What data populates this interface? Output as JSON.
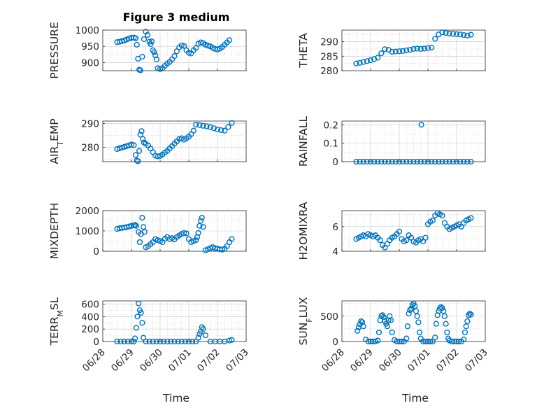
{
  "figure": {
    "title": "Figure 3 medium",
    "x_axis_label": "Time"
  },
  "colors": {
    "marker": "#0072BD",
    "axis": "#262626",
    "grid": "#c8c8c8"
  },
  "chart_data": [
    {
      "type": "scatter",
      "ylabel": "PRESSURE",
      "ylim": [
        875,
        1000
      ],
      "yticks": [
        "900",
        "950",
        "1000"
      ],
      "xlim": [
        "06/28",
        "07/03"
      ],
      "xticks": [
        "06/28",
        "06/29",
        "06/30",
        "07/01",
        "07/02",
        "07/03"
      ],
      "grid": true,
      "x": [
        "06/28 12:00",
        "06/28 14:00",
        "06/28 16:00",
        "06/28 18:00",
        "06/28 20:00",
        "06/28 22:00",
        "06/29 00:00",
        "06/29 02:00",
        "06/29 03:30",
        "06/29 04:30",
        "06/29 05:30",
        "06/29 06:30",
        "06/29 07:30",
        "06/29 09:00",
        "06/29 10:30",
        "06/29 12:00",
        "06/29 13:30",
        "06/29 15:00",
        "06/29 16:00",
        "06/29 17:00",
        "06/29 18:00",
        "06/29 19:00",
        "06/29 20:00",
        "06/29 21:00",
        "06/29 22:00",
        "06/30 00:00",
        "06/30 02:00",
        "06/30 04:00",
        "06/30 06:00",
        "06/30 08:00",
        "06/30 10:00",
        "06/30 12:00",
        "06/30 14:00",
        "06/30 16:00",
        "06/30 18:00",
        "06/30 20:00",
        "06/30 22:00",
        "07/01 00:00",
        "07/01 02:00",
        "07/01 04:00",
        "07/01 06:00",
        "07/01 08:00",
        "07/01 10:00",
        "07/01 12:00",
        "07/01 14:00",
        "07/01 16:00",
        "07/01 18:00",
        "07/01 20:00",
        "07/01 22:00",
        "07/02 00:00",
        "07/02 02:00",
        "07/02 04:00",
        "07/02 06:00",
        "07/02 08:00",
        "07/02 10:00"
      ],
      "y": [
        963,
        964,
        966,
        968,
        971,
        974,
        976,
        977,
        975,
        955,
        912,
        878,
        876,
        918,
        972,
        995,
        985,
        964,
        957,
        965,
        938,
        932,
        922,
        910,
        883,
        880,
        883,
        890,
        897,
        902,
        910,
        920,
        935,
        947,
        953,
        951,
        938,
        930,
        928,
        938,
        945,
        958,
        962,
        960,
        955,
        952,
        950,
        945,
        942,
        940,
        943,
        948,
        955,
        962,
        969
      ]
    },
    {
      "type": "scatter",
      "ylabel": "THETA",
      "ylim": [
        280,
        294
      ],
      "yticks": [
        "280",
        "285",
        "290"
      ],
      "xlim": [
        "06/28",
        "07/03"
      ],
      "xticks": [
        "06/28",
        "06/29",
        "06/30",
        "07/01",
        "07/02",
        "07/03"
      ],
      "grid": true,
      "x": [
        "06/28 12:00",
        "06/28 15:00",
        "06/28 18:00",
        "06/28 21:00",
        "06/29 00:00",
        "06/29 03:00",
        "06/29 06:00",
        "06/29 09:00",
        "06/29 12:00",
        "06/29 15:00",
        "06/29 18:00",
        "06/29 21:00",
        "06/30 00:00",
        "06/30 03:00",
        "06/30 06:00",
        "06/30 09:00",
        "06/30 12:00",
        "06/30 15:00",
        "06/30 18:00",
        "06/30 21:00",
        "07/01 00:00",
        "07/01 03:00",
        "07/01 06:00",
        "07/01 09:00",
        "07/01 12:00",
        "07/01 15:00",
        "07/01 18:00",
        "07/01 21:00",
        "07/02 00:00",
        "07/02 03:00",
        "07/02 06:00",
        "07/02 09:00",
        "07/02 12:00"
      ],
      "y": [
        282.5,
        282.7,
        283.0,
        283.3,
        283.6,
        284.0,
        284.5,
        286.0,
        287.4,
        287.2,
        286.5,
        286.6,
        286.7,
        286.8,
        287.0,
        287.2,
        287.5,
        287.6,
        287.5,
        287.6,
        287.8,
        288.0,
        291.0,
        292.5,
        293.2,
        293.0,
        292.8,
        292.7,
        292.6,
        292.5,
        292.3,
        292.1,
        292.4
      ]
    },
    {
      "type": "scatter",
      "ylabel": "AIR_TEMP",
      "ylim": [
        274,
        291
      ],
      "yticks": [
        "280",
        "290"
      ],
      "xlim": [
        "06/28",
        "07/03"
      ],
      "xticks": [
        "06/28",
        "06/29",
        "06/30",
        "07/01",
        "07/02",
        "07/03"
      ],
      "grid": true,
      "x": [
        "06/28 12:00",
        "06/28 14:00",
        "06/28 16:00",
        "06/28 18:00",
        "06/28 20:00",
        "06/28 22:00",
        "06/29 00:00",
        "06/29 02:00",
        "06/29 03:30",
        "06/29 04:30",
        "06/29 05:30",
        "06/29 06:30",
        "06/29 07:30",
        "06/29 08:30",
        "06/29 09:30",
        "06/29 10:30",
        "06/29 12:00",
        "06/29 14:00",
        "06/29 16:00",
        "06/29 18:00",
        "06/29 20:00",
        "06/29 22:00",
        "06/30 00:00",
        "06/30 02:00",
        "06/30 04:00",
        "06/30 06:00",
        "06/30 08:00",
        "06/30 10:00",
        "06/30 12:00",
        "06/30 14:00",
        "06/30 16:00",
        "06/30 18:00",
        "06/30 20:00",
        "06/30 22:00",
        "07/01 00:00",
        "07/01 02:00",
        "07/01 04:00",
        "07/01 06:00",
        "07/01 09:00",
        "07/01 12:00",
        "07/01 15:00",
        "07/01 18:00",
        "07/01 21:00",
        "07/02 00:00",
        "07/02 03:00",
        "07/02 06:00",
        "07/02 09:00",
        "07/02 12:00"
      ],
      "y": [
        279.3,
        279.6,
        279.9,
        280.2,
        280.5,
        280.8,
        281.2,
        280.9,
        276.8,
        274.5,
        274.2,
        278.5,
        285.3,
        286.8,
        283.5,
        282.0,
        281.5,
        280.8,
        279.5,
        278.0,
        276.5,
        276.2,
        276.4,
        277.0,
        277.8,
        278.5,
        279.5,
        280.5,
        281.5,
        282.5,
        283.5,
        283.8,
        283.2,
        283.8,
        284.5,
        285.5,
        287.0,
        289.5,
        289.3,
        289.0,
        288.8,
        288.5,
        288.0,
        287.5,
        287.2,
        287.0,
        288.5,
        290.2
      ]
    },
    {
      "type": "scatter",
      "ylabel": "RAINFALL",
      "ylim": [
        0,
        0.22
      ],
      "yticks": [
        "0",
        "0.1",
        "0.2"
      ],
      "xlim": [
        "06/28",
        "07/03"
      ],
      "xticks": [
        "06/28",
        "06/29",
        "06/30",
        "07/01",
        "07/02",
        "07/03"
      ],
      "grid": true,
      "x": [
        "06/28 12:00",
        "06/28 15:00",
        "06/28 18:00",
        "06/28 21:00",
        "06/29 00:00",
        "06/29 03:00",
        "06/29 06:00",
        "06/29 09:00",
        "06/29 12:00",
        "06/29 15:00",
        "06/29 18:00",
        "06/29 21:00",
        "06/30 00:00",
        "06/30 03:00",
        "06/30 06:00",
        "06/30 09:00",
        "06/30 12:00",
        "06/30 15:00",
        "06/30 18:00",
        "06/30 21:00",
        "07/01 00:00",
        "07/01 03:00",
        "07/01 06:00",
        "07/01 09:00",
        "07/01 12:00",
        "07/01 15:00",
        "07/01 18:00",
        "07/01 21:00",
        "07/02 00:00",
        "07/02 03:00",
        "07/02 06:00",
        "07/02 09:00",
        "07/02 12:00",
        "06/30 18:30"
      ],
      "y": [
        0,
        0,
        0,
        0,
        0,
        0,
        0,
        0,
        0,
        0,
        0,
        0,
        0,
        0,
        0,
        0,
        0,
        0,
        0,
        0,
        0,
        0,
        0,
        0,
        0,
        0,
        0,
        0,
        0,
        0,
        0,
        0,
        0,
        0.2
      ]
    },
    {
      "type": "scatter",
      "ylabel": "MIXDEPTH",
      "ylim": [
        0,
        2000
      ],
      "yticks": [
        "0",
        "1000",
        "2000"
      ],
      "xlim": [
        "06/28",
        "07/03"
      ],
      "xticks": [
        "06/28",
        "06/29",
        "06/30",
        "07/01",
        "07/02",
        "07/03"
      ],
      "grid": true,
      "x": [
        "06/28 12:00",
        "06/28 14:00",
        "06/28 16:00",
        "06/28 18:00",
        "06/28 20:00",
        "06/28 22:00",
        "06/29 00:00",
        "06/29 02:00",
        "06/29 03:00",
        "06/29 04:00",
        "06/29 06:00",
        "06/29 07:00",
        "06/29 08:00",
        "06/29 09:00",
        "06/29 10:00",
        "06/29 11:00",
        "06/29 12:00",
        "06/29 14:00",
        "06/29 16:00",
        "06/29 18:00",
        "06/29 20:00",
        "06/29 22:00",
        "06/30 00:00",
        "06/30 02:00",
        "06/30 04:00",
        "06/30 06:00",
        "06/30 08:00",
        "06/30 10:00",
        "06/30 12:00",
        "06/30 14:00",
        "06/30 16:00",
        "06/30 18:00",
        "06/30 20:00",
        "06/30 22:00",
        "07/01 00:00",
        "07/01 02:00",
        "07/01 04:00",
        "07/01 06:00",
        "07/01 07:00",
        "07/01 08:00",
        "07/01 09:00",
        "07/01 10:00",
        "07/01 11:00",
        "07/01 12:00",
        "07/01 14:00",
        "07/01 16:00",
        "07/01 18:00",
        "07/01 20:00",
        "07/01 22:00",
        "07/02 00:00",
        "07/02 02:00",
        "07/02 04:00",
        "07/02 06:00",
        "07/02 08:00",
        "07/02 10:00",
        "07/02 12:00"
      ],
      "y": [
        1100,
        1130,
        1150,
        1170,
        1190,
        1220,
        1250,
        1280,
        1300,
        1250,
        950,
        450,
        850,
        1650,
        1200,
        950,
        200,
        250,
        350,
        450,
        600,
        550,
        500,
        450,
        620,
        700,
        600,
        650,
        580,
        700,
        780,
        850,
        900,
        880,
        600,
        450,
        500,
        550,
        700,
        900,
        1250,
        1500,
        1650,
        1200,
        50,
        100,
        150,
        200,
        150,
        120,
        100,
        80,
        130,
        250,
        450,
        600
      ]
    },
    {
      "type": "scatter",
      "ylabel": "H2OMIXRA",
      "ylim": [
        4,
        7.3
      ],
      "yticks": [
        "4",
        "6"
      ],
      "xlim": [
        "06/28",
        "07/03"
      ],
      "xticks": [
        "06/28",
        "06/29",
        "06/30",
        "07/01",
        "07/02",
        "07/03"
      ],
      "grid": true,
      "x": [
        "06/28 12:00",
        "06/28 14:00",
        "06/28 16:00",
        "06/28 18:00",
        "06/28 20:00",
        "06/28 22:00",
        "06/29 00:00",
        "06/29 02:00",
        "06/29 04:00",
        "06/29 06:00",
        "06/29 08:00",
        "06/29 10:00",
        "06/29 12:00",
        "06/29 14:00",
        "06/29 16:00",
        "06/29 18:00",
        "06/29 20:00",
        "06/29 22:00",
        "06/30 00:00",
        "06/30 02:00",
        "06/30 04:00",
        "06/30 06:00",
        "06/30 08:00",
        "06/30 10:00",
        "06/30 12:00",
        "06/30 14:00",
        "06/30 16:00",
        "06/30 18:00",
        "06/30 20:00",
        "06/30 22:00",
        "07/01 00:00",
        "07/01 02:00",
        "07/01 04:00",
        "07/01 06:00",
        "07/01 08:00",
        "07/01 10:00",
        "07/01 12:00",
        "07/01 14:00",
        "07/01 16:00",
        "07/01 18:00",
        "07/01 20:00",
        "07/01 22:00",
        "07/02 00:00",
        "07/02 02:00",
        "07/02 04:00",
        "07/02 06:00",
        "07/02 08:00",
        "07/02 10:00",
        "07/02 12:00"
      ],
      "y": [
        5.0,
        5.1,
        5.2,
        5.3,
        5.2,
        5.4,
        5.3,
        5.2,
        5.3,
        5.1,
        4.9,
        4.5,
        4.3,
        4.6,
        4.9,
        5.1,
        5.2,
        5.4,
        5.6,
        5.0,
        4.8,
        4.9,
        5.3,
        5.1,
        4.8,
        4.7,
        4.9,
        5.0,
        4.8,
        5.1,
        6.2,
        6.4,
        6.5,
        6.9,
        7.1,
        7.0,
        6.9,
        6.3,
        6.0,
        5.8,
        5.9,
        6.0,
        6.1,
        6.2,
        6.0,
        6.3,
        6.5,
        6.6,
        6.7
      ]
    },
    {
      "type": "scatter",
      "ylabel": "TERR_MSL",
      "ylim": [
        0,
        650
      ],
      "yticks": [
        "0",
        "200",
        "400",
        "600"
      ],
      "xlim": [
        "06/28",
        "07/03"
      ],
      "xticks": [
        "06/28",
        "06/29",
        "06/30",
        "07/01",
        "07/02",
        "07/03"
      ],
      "grid": true,
      "x": [
        "06/28 12:00",
        "06/28 15:00",
        "06/28 18:00",
        "06/28 21:00",
        "06/29 00:00",
        "06/29 02:00",
        "06/29 03:00",
        "06/29 04:00",
        "06/29 05:00",
        "06/29 06:00",
        "06/29 07:00",
        "06/29 08:00",
        "06/29 09:00",
        "06/29 10:00",
        "06/29 12:00",
        "06/29 15:00",
        "06/29 18:00",
        "06/29 21:00",
        "06/30 00:00",
        "06/30 03:00",
        "06/30 06:00",
        "06/30 09:00",
        "06/30 12:00",
        "06/30 15:00",
        "06/30 18:00",
        "06/30 21:00",
        "07/01 00:00",
        "07/01 03:00",
        "07/01 06:00",
        "07/01 08:00",
        "07/01 09:00",
        "07/01 10:00",
        "07/01 11:00",
        "07/01 12:00",
        "07/01 14:00",
        "07/01 18:00",
        "07/01 22:00",
        "07/02 02:00",
        "07/02 06:00",
        "07/02 10:00",
        "07/02 12:00"
      ],
      "y": [
        0,
        0,
        0,
        0,
        0,
        0,
        50,
        220,
        400,
        610,
        500,
        460,
        300,
        60,
        0,
        0,
        0,
        0,
        0,
        0,
        0,
        0,
        0,
        0,
        0,
        0,
        0,
        0,
        0,
        60,
        120,
        160,
        230,
        200,
        100,
        0,
        0,
        0,
        0,
        15,
        25
      ]
    },
    {
      "type": "scatter",
      "ylabel": "SUN_FLUX",
      "ylim": [
        0,
        800
      ],
      "yticks": [
        "0",
        "500"
      ],
      "xlim": [
        "06/28",
        "07/03"
      ],
      "xticks": [
        "06/28",
        "06/29",
        "06/30",
        "07/01",
        "07/02",
        "07/03"
      ],
      "grid": true,
      "x": [
        "06/28 13:00",
        "06/28 14:00",
        "06/28 15:00",
        "06/28 16:00",
        "06/28 17:00",
        "06/28 18:00",
        "06/28 20:00",
        "06/28 22:00",
        "06/29 00:00",
        "06/29 02:00",
        "06/29 04:00",
        "06/29 06:00",
        "06/29 07:00",
        "06/29 08:00",
        "06/29 09:00",
        "06/29 10:00",
        "06/29 11:00",
        "06/29 12:00",
        "06/29 13:00",
        "06/29 14:00",
        "06/29 15:00",
        "06/29 16:00",
        "06/29 17:00",
        "06/29 18:00",
        "06/29 20:00",
        "06/29 22:00",
        "06/30 00:00",
        "06/30 02:00",
        "06/30 04:00",
        "06/30 06:00",
        "06/30 07:00",
        "06/30 08:00",
        "06/30 09:00",
        "06/30 10:00",
        "06/30 11:00",
        "06/30 12:00",
        "06/30 13:00",
        "06/30 14:00",
        "06/30 15:00",
        "06/30 16:00",
        "06/30 17:00",
        "06/30 18:00",
        "06/30 20:00",
        "06/30 22:00",
        "07/01 00:00",
        "07/01 02:00",
        "07/01 04:00",
        "07/01 06:00",
        "07/01 07:00",
        "07/01 08:00",
        "07/01 09:00",
        "07/01 10:00",
        "07/01 11:00",
        "07/01 12:00",
        "07/01 13:00",
        "07/01 14:00",
        "07/01 15:00",
        "07/01 16:00",
        "07/01 17:00",
        "07/01 18:00",
        "07/01 20:00",
        "07/01 22:00",
        "07/02 00:00",
        "07/02 02:00",
        "07/02 04:00",
        "07/02 06:00",
        "07/02 07:00",
        "07/02 08:00",
        "07/02 09:00",
        "07/02 10:00",
        "07/02 11:00",
        "07/02 12:00"
      ],
      "y": [
        210,
        280,
        340,
        400,
        380,
        300,
        40,
        0,
        0,
        0,
        0,
        20,
        180,
        420,
        500,
        520,
        480,
        400,
        350,
        300,
        420,
        500,
        420,
        180,
        30,
        0,
        0,
        0,
        0,
        60,
        300,
        550,
        620,
        650,
        720,
        750,
        700,
        600,
        500,
        380,
        180,
        60,
        0,
        0,
        0,
        0,
        0,
        80,
        350,
        520,
        600,
        650,
        680,
        660,
        600,
        500,
        350,
        180,
        60,
        20,
        0,
        0,
        0,
        0,
        0,
        40,
        180,
        300,
        400,
        520,
        550,
        530
      ]
    }
  ]
}
